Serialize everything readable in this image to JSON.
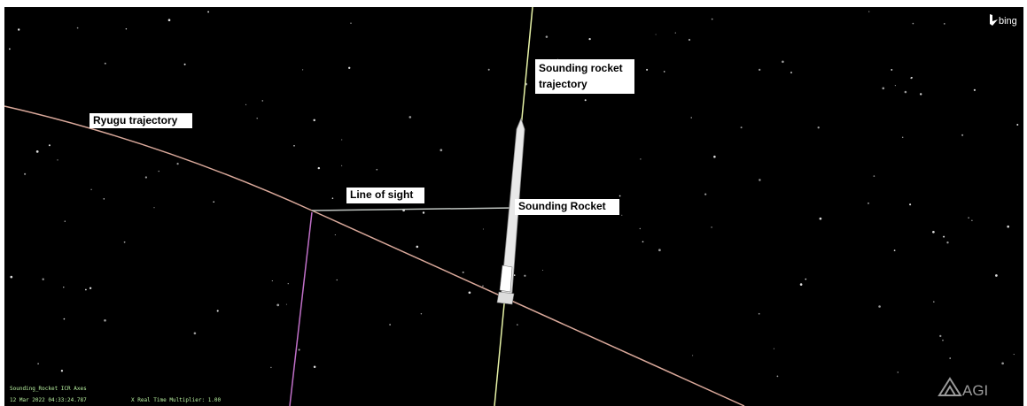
{
  "scene": {
    "labels": {
      "ryugu": "Ryugu trajectory",
      "line_of_sight": "Line of sight",
      "rocket_trajectory": "Sounding rocket trajectory",
      "rocket": "Sounding Rocket"
    },
    "status": {
      "axes": "Sounding_Rocket ICR Axes",
      "time": "12 Mar 2022 04:33:24.787",
      "multiplier": "X Real Time Multiplier: 1.00"
    },
    "logos": {
      "bing": "bing",
      "agi": "AGI"
    }
  }
}
